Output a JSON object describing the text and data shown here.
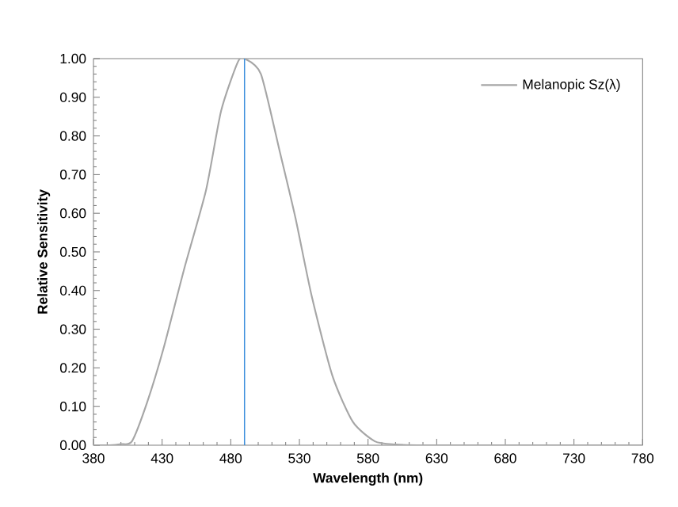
{
  "chart_data": {
    "type": "line",
    "xlabel": "Wavelength (nm)",
    "ylabel": "Relative Sensitivity",
    "x": [
      380,
      392,
      400,
      408,
      419,
      431,
      446,
      462,
      473,
      485,
      490,
      502,
      516,
      527,
      539,
      554,
      569,
      585,
      600,
      620,
      700,
      780
    ],
    "series": [
      {
        "name": "Melanopic Sz(λ)",
        "color": "#a6a6a6",
        "values": [
          0,
          0,
          0.003,
          0.01,
          0.11,
          0.25,
          0.455,
          0.66,
          0.865,
          0.99,
          1,
          0.96,
          0.755,
          0.59,
          0.385,
          0.18,
          0.06,
          0.01,
          0.002,
          0,
          0,
          0
        ]
      }
    ],
    "xlim": [
      380,
      780
    ],
    "xticks": [
      380,
      430,
      480,
      530,
      580,
      630,
      680,
      730,
      780
    ],
    "ylim": [
      0,
      1
    ],
    "yticks": [
      {
        "value": 0,
        "label": "0.00"
      },
      {
        "value": 0.1,
        "label": "0.10"
      },
      {
        "value": 0.2,
        "label": "0.20"
      },
      {
        "value": 0.3,
        "label": "0.30"
      },
      {
        "value": 0.4,
        "label": "0.40"
      },
      {
        "value": 0.5,
        "label": "0.50"
      },
      {
        "value": 0.6,
        "label": "0.60"
      },
      {
        "value": 0.7,
        "label": "0.70"
      },
      {
        "value": 0.8,
        "label": "0.80"
      },
      {
        "value": 0.9,
        "label": "0.90"
      },
      {
        "value": 1,
        "label": "1.00"
      }
    ],
    "ref_lines": [
      {
        "axis": "x",
        "value": 490,
        "color": "#3c8fdc"
      }
    ],
    "legend": "top right",
    "grid": false,
    "marker": "none",
    "line_style": "solid"
  }
}
